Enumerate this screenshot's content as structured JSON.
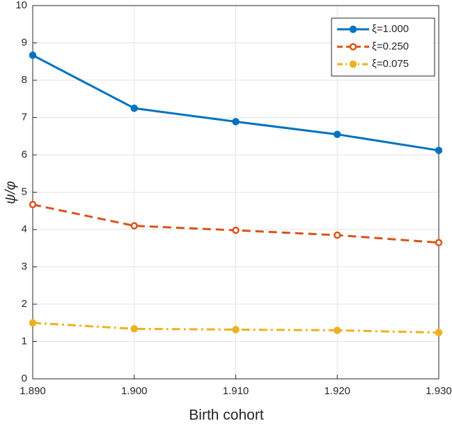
{
  "chart_data": {
    "type": "line",
    "x_label": "Birth cohort",
    "y_label": "ψ/φ",
    "x": [
      1890,
      1900,
      1910,
      1920,
      1930
    ],
    "xlim": [
      1890,
      1930
    ],
    "xticks": [
      {
        "value": 1890,
        "label": "1.890"
      },
      {
        "value": 1900,
        "label": "1.900"
      },
      {
        "value": 1910,
        "label": "1.910"
      },
      {
        "value": 1920,
        "label": "1.920"
      },
      {
        "value": 1930,
        "label": "1.930"
      }
    ],
    "ylim": [
      0,
      10
    ],
    "yticks": [
      0,
      1,
      2,
      3,
      4,
      5,
      6,
      7,
      8,
      9,
      10
    ],
    "grid": true,
    "legend": "top-right",
    "series": [
      {
        "name": "ξ=1.000",
        "color": "#0072bd",
        "linestyle": "solid",
        "marker_filled": true,
        "values": [
          8.67,
          7.25,
          6.89,
          6.55,
          6.12
        ]
      },
      {
        "name": "ξ=0.250",
        "color": "#d95319",
        "linestyle": "dashed",
        "marker_filled": false,
        "values": [
          4.67,
          4.1,
          3.98,
          3.85,
          3.65
        ]
      },
      {
        "name": "ξ=0.075",
        "color": "#edb120",
        "linestyle": "dashdot",
        "marker_filled": true,
        "values": [
          1.5,
          1.34,
          1.32,
          1.3,
          1.24
        ]
      }
    ]
  }
}
